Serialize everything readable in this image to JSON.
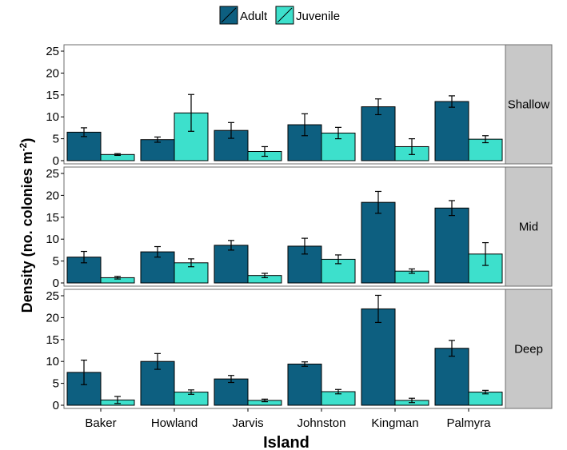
{
  "chart_data": {
    "type": "bar",
    "title": "",
    "xlabel": "Island",
    "ylabel": "Density  (no. colonies m",
    "ylabel_superscript": "-2",
    "ylabel_close": ")",
    "ylim": [
      0,
      25
    ],
    "yticks": [
      0,
      5,
      10,
      15,
      20,
      25
    ],
    "categories": [
      "Baker",
      "Howland",
      "Jarvis",
      "Johnston",
      "Kingman",
      "Palmyra"
    ],
    "legend": {
      "position": "top",
      "items": [
        {
          "name": "Adult",
          "color": "#0d5f80"
        },
        {
          "name": "Juvenile",
          "color": "#3de0cc"
        }
      ]
    },
    "grid": false,
    "panels": [
      {
        "name": "Shallow",
        "series": [
          {
            "name": "Adult",
            "values": [
              6.5,
              4.8,
              6.9,
              8.2,
              12.3,
              13.5
            ],
            "errors": [
              1.0,
              0.6,
              1.8,
              2.5,
              1.8,
              1.3
            ]
          },
          {
            "name": "Juvenile",
            "values": [
              1.4,
              10.9,
              2.1,
              6.3,
              3.2,
              4.9
            ],
            "errors": [
              0.2,
              4.2,
              1.1,
              1.3,
              1.8,
              0.8
            ]
          }
        ]
      },
      {
        "name": "Mid",
        "series": [
          {
            "name": "Adult",
            "values": [
              5.9,
              7.1,
              8.6,
              8.4,
              18.4,
              17.1
            ],
            "errors": [
              1.3,
              1.2,
              1.1,
              1.8,
              2.5,
              1.7
            ]
          },
          {
            "name": "Juvenile",
            "values": [
              1.2,
              4.6,
              1.7,
              5.4,
              2.7,
              6.6
            ],
            "errors": [
              0.3,
              0.9,
              0.5,
              1.0,
              0.5,
              2.6
            ]
          }
        ]
      },
      {
        "name": "Deep",
        "series": [
          {
            "name": "Adult",
            "values": [
              7.5,
              10.0,
              6.0,
              9.4,
              22.0,
              13.0
            ],
            "errors": [
              2.8,
              1.8,
              0.8,
              0.5,
              3.1,
              1.8
            ]
          },
          {
            "name": "Juvenile",
            "values": [
              1.2,
              3.0,
              1.1,
              3.1,
              1.1,
              3.0
            ],
            "errors": [
              0.8,
              0.5,
              0.3,
              0.5,
              0.5,
              0.4
            ]
          }
        ]
      }
    ],
    "panel_strip_color": "#c8c8c8",
    "bar_outline_color": "#000000"
  }
}
